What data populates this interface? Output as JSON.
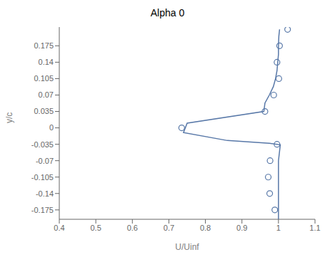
{
  "chart_data": {
    "type": "line",
    "title": "Alpha 0",
    "xlabel": "U/Uinf",
    "ylabel": "y/c",
    "xlim": [
      0.4,
      1.1
    ],
    "ylim": [
      -0.195,
      0.215
    ],
    "xticks": [
      0.4,
      0.5,
      0.6,
      0.7,
      0.8,
      0.9,
      1,
      1.1
    ],
    "yticks": [
      0.175,
      0.14,
      0.105,
      0.07,
      0.035,
      0,
      -0.035,
      -0.07,
      -0.105,
      -0.14,
      -0.175
    ],
    "grid": false,
    "series": [
      {
        "type": "line",
        "color": "#5878a8",
        "x": [
          1.003,
          1.001,
          1.0,
          1.0,
          0.998,
          0.996,
          0.992,
          0.986,
          0.975,
          0.963,
          0.96,
          0.75,
          0.74,
          0.86,
          0.975,
          1.005,
          1.0,
          1.0,
          1.0,
          1.0,
          1.0
        ],
        "y": [
          0.21,
          0.195,
          0.175,
          0.157,
          0.14,
          0.122,
          0.105,
          0.088,
          0.07,
          0.053,
          0.035,
          0.01,
          -0.01,
          -0.027,
          -0.033,
          -0.036,
          -0.07,
          -0.105,
          -0.14,
          -0.175,
          -0.195
        ]
      },
      {
        "type": "scatter",
        "color": "#5878a8",
        "marker": "circle",
        "x": [
          1.025,
          1.003,
          0.996,
          1.001,
          0.987,
          0.963,
          0.735,
          0.996,
          0.977,
          0.972,
          0.976,
          0.99
        ],
        "y": [
          0.21,
          0.175,
          0.14,
          0.105,
          0.07,
          0.035,
          0.0,
          -0.035,
          -0.07,
          -0.105,
          -0.14,
          -0.175
        ]
      }
    ]
  }
}
